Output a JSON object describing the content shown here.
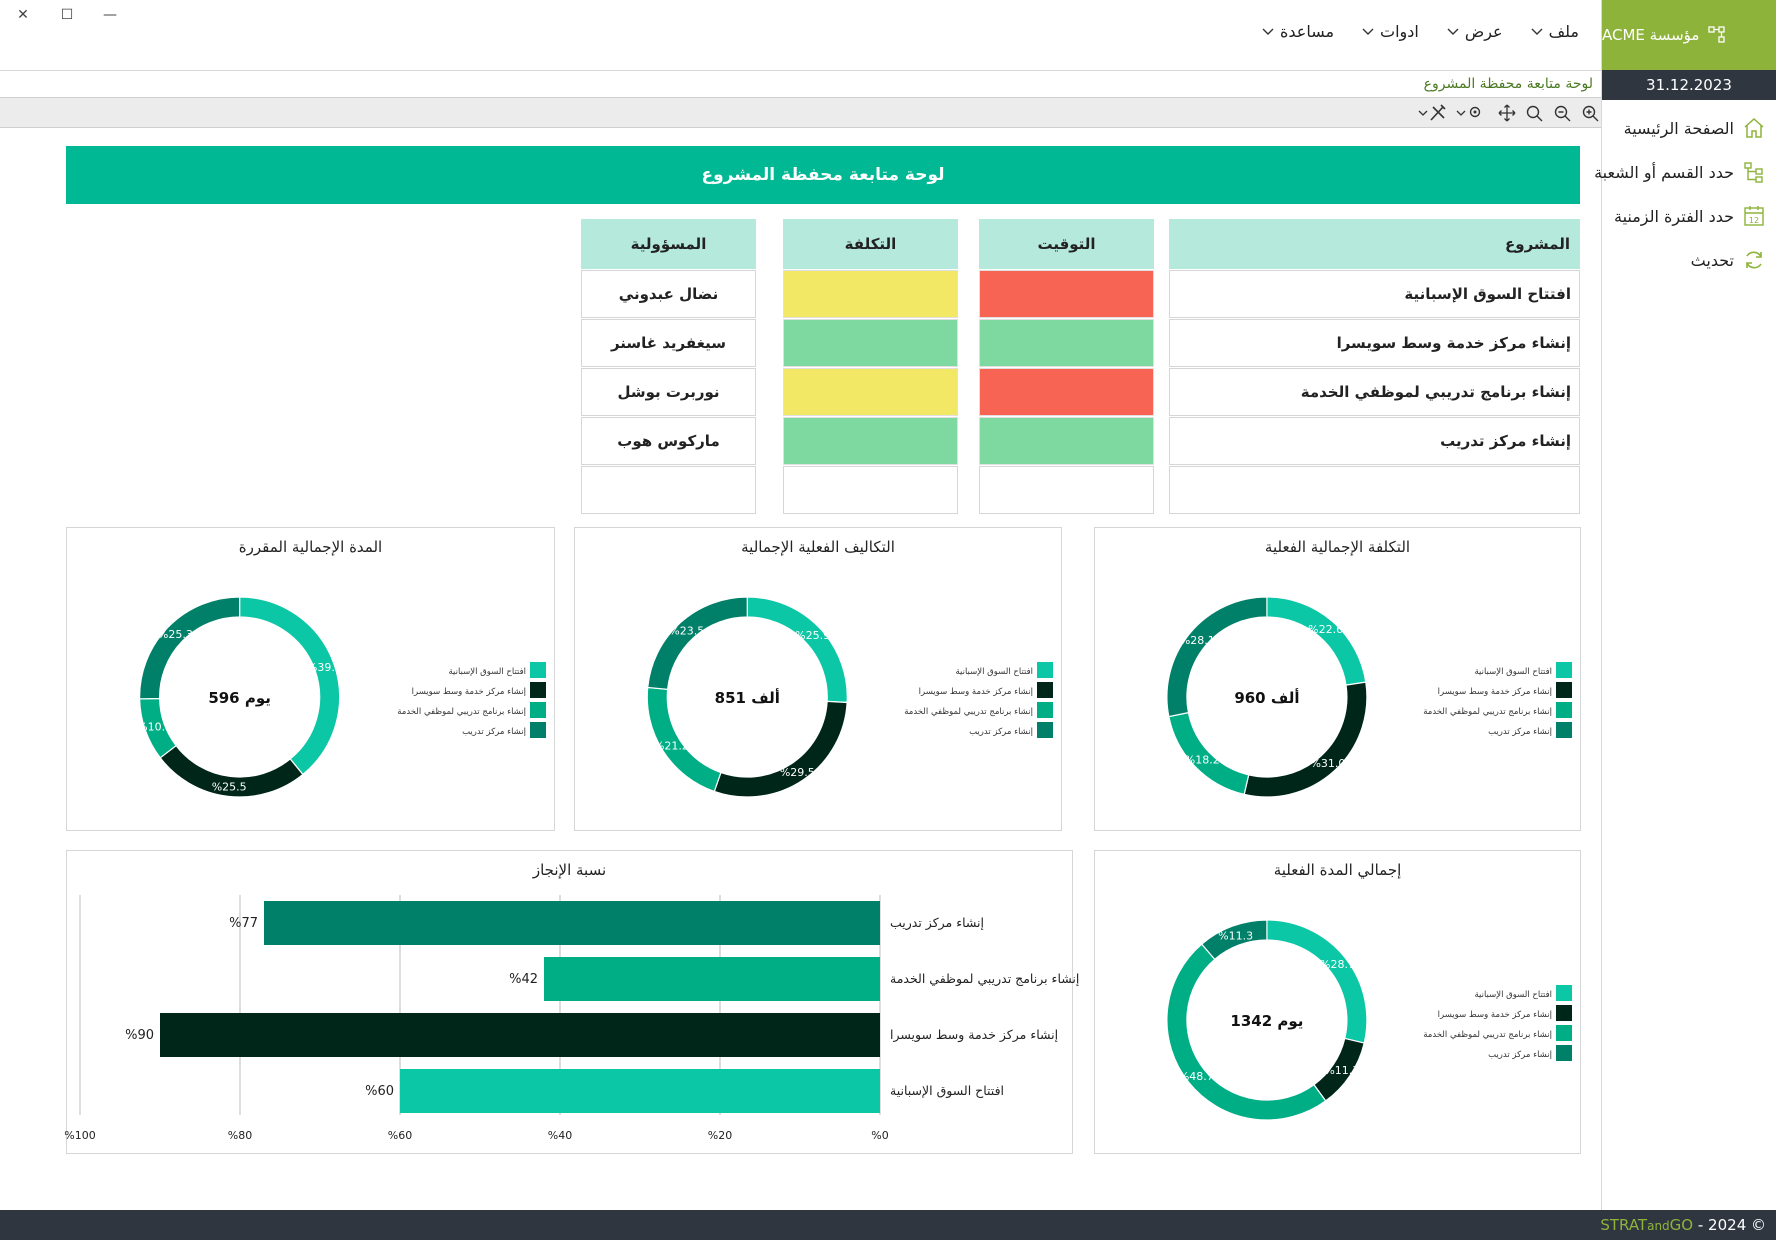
{
  "window": {
    "close": "✕",
    "maximize": "☐",
    "minimize": "—"
  },
  "sidebar": {
    "org": "مؤسسة ACME",
    "date": "31.12.2023",
    "items": [
      {
        "label": "الصفحة الرئيسية",
        "icon": "home-icon"
      },
      {
        "label": "حدد القسم أو الشعبة",
        "icon": "org-chart-icon"
      },
      {
        "label": "حدد الفترة الزمنية",
        "icon": "calendar-icon"
      },
      {
        "label": "تحديث",
        "icon": "refresh-icon"
      }
    ]
  },
  "menu": {
    "items": [
      {
        "label": "ملف"
      },
      {
        "label": "عرض"
      },
      {
        "label": "ادوات"
      },
      {
        "label": "مساعدة"
      }
    ]
  },
  "breadcrumb": "لوحة متابعة محفظة المشروع",
  "toolbar": {
    "tools": [
      "zoom-in-icon",
      "zoom-out-icon",
      "search-icon",
      "move-icon",
      "settings-dropdown-icon",
      "tools-dropdown-icon"
    ]
  },
  "banner": "لوحة متابعة محفظة المشروع",
  "colors": {
    "accent": "#00b894",
    "header": "#b4e9dc",
    "red": "#f86454",
    "yellow": "#f2e866",
    "green": "#7dd99f",
    "c1": "#0bc7a6",
    "c2": "#00261a",
    "c3": "#00ae86",
    "c4": "#008068"
  },
  "table": {
    "headers": {
      "project": "المشروع",
      "timing": "التوقيت",
      "cost": "التكلفة",
      "owner": "المسؤولية"
    },
    "rows": [
      {
        "project": "افتتاح السوق الإسبانية",
        "timing": "red",
        "cost": "yellow",
        "owner": "نضال عبدوني"
      },
      {
        "project": "إنشاء مركز خدمة وسط سويسرا",
        "timing": "green",
        "cost": "green",
        "owner": "سيغفريد غاسنر"
      },
      {
        "project": "إنشاء برنامج تدريبي لموظفي الخدمة",
        "timing": "red",
        "cost": "yellow",
        "owner": "نوربرت بوشل"
      },
      {
        "project": "إنشاء مركز تدريب",
        "timing": "green",
        "cost": "green",
        "owner": "ماركوس هوب"
      }
    ]
  },
  "legend": [
    "افتتاح السوق الإسبانية",
    "إنشاء مركز خدمة وسط سويسرا",
    "إنشاء برنامج تدريبي لموظفي الخدمة",
    "إنشاء مركز تدريب"
  ],
  "chart_data": [
    {
      "id": "total-actual-cost",
      "type": "pie",
      "title": "التكلفة الإجمالية الفعلية",
      "center": "960 ألف",
      "values": [
        22.6,
        31.0,
        18.2,
        28.1
      ],
      "labels": [
        "%22.6",
        "%31.0",
        "%18.2",
        "%28.1"
      ]
    },
    {
      "id": "total-actual-costs",
      "type": "pie",
      "title": "التكاليف الفعلية الإجمالية",
      "center": "851 ألف",
      "values": [
        25.9,
        29.5,
        21.2,
        23.5
      ],
      "labels": [
        "%25.9",
        "%29.5",
        "%21.2",
        "%23.5"
      ]
    },
    {
      "id": "planned-duration",
      "type": "pie",
      "title": "المدة الإجمالية المقررة",
      "center": "596 يوم",
      "values": [
        39.1,
        25.5,
        10.1,
        25.3
      ],
      "labels": [
        "%39.1",
        "%25.5",
        "%10.1",
        "%25.3"
      ]
    },
    {
      "id": "actual-duration",
      "type": "pie",
      "title": "إجمالي المدة الفعلية",
      "center": "1342 يوم",
      "values": [
        28.7,
        11.3,
        48.7,
        11.3
      ],
      "labels": [
        "%28.7",
        "%11.3",
        "%48.7",
        "%11.3"
      ]
    },
    {
      "id": "completion",
      "type": "bar",
      "title": "نسبة الإنجاز",
      "categories": [
        "إنشاء مركز تدريب",
        "إنشاء برنامج تدريبي لموظفي الخدمة",
        "إنشاء مركز خدمة وسط سويسرا",
        "افتتاح السوق الإسبانية"
      ],
      "values": [
        77,
        42,
        90,
        60
      ],
      "value_labels": [
        "%77",
        "%42",
        "%90",
        "%60"
      ],
      "xlim": [
        0,
        100
      ],
      "ticks": [
        0,
        20,
        40,
        60,
        80,
        100
      ],
      "tick_labels": [
        "%0",
        "%20",
        "%40",
        "%60",
        "%80",
        "%100"
      ]
    }
  ]
}
